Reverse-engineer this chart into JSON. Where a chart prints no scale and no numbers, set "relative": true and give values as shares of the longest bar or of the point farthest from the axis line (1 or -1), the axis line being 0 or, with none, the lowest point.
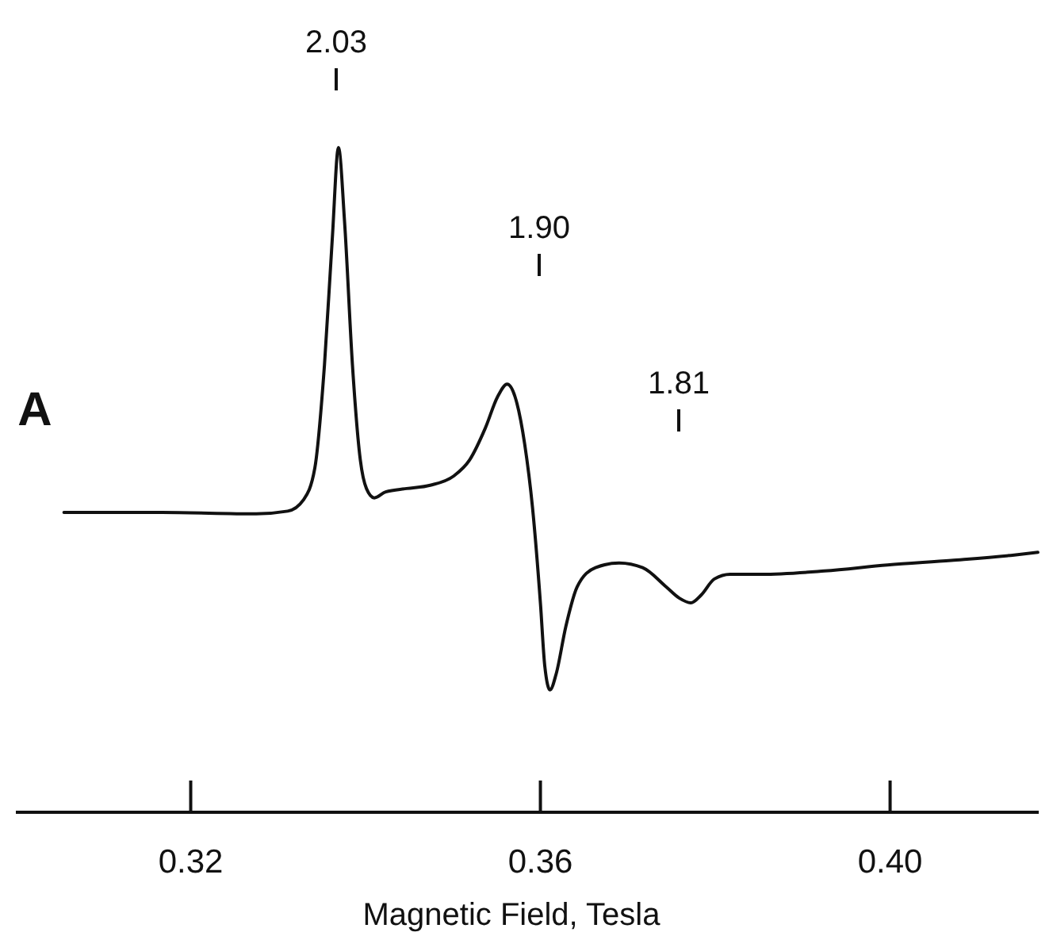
{
  "chart_data": {
    "type": "line",
    "relative": true,
    "xlabel": "Magnetic Field, Tesla",
    "xlim": [
      0.3,
      0.417
    ],
    "xticks": [
      0.32,
      0.36,
      {
        "value": 0.4,
        "label": "0.40"
      }
    ],
    "grid": false,
    "marker": "none",
    "line_style": "solid",
    "x": [
      0.3055,
      0.3167,
      0.3275,
      0.3311,
      0.3329,
      0.3342,
      0.3353,
      0.3362,
      0.3369,
      0.3376,
      0.3385,
      0.3394,
      0.3401,
      0.341,
      0.3423,
      0.3447,
      0.3474,
      0.3501,
      0.3519,
      0.3537,
      0.3551,
      0.3562,
      0.3571,
      0.3582,
      0.3591,
      0.36,
      0.3605,
      0.3611,
      0.3618,
      0.3629,
      0.3642,
      0.3663,
      0.369,
      0.3717,
      0.3744,
      0.3759,
      0.3772,
      0.3784,
      0.3799,
      0.3817,
      0.3853,
      0.3925,
      0.3997,
      0.407,
      0.4142,
      0.4169
    ],
    "series": [
      {
        "color": "#111111",
        "values": [
          0.451,
          0.451,
          0.449,
          0.453,
          0.47,
          0.518,
          0.673,
          0.864,
          1,
          0.888,
          0.673,
          0.53,
          0.487,
          0.473,
          0.482,
          0.487,
          0.492,
          0.506,
          0.53,
          0.578,
          0.625,
          0.644,
          0.625,
          0.554,
          0.458,
          0.315,
          0.22,
          0.184,
          0.208,
          0.279,
          0.339,
          0.368,
          0.375,
          0.368,
          0.339,
          0.322,
          0.315,
          0.327,
          0.351,
          0.358,
          0.358,
          0.363,
          0.372,
          0.379,
          0.387,
          0.391
        ]
      }
    ],
    "annotations": [
      "A",
      "2.03",
      "1.90",
      "1.81"
    ]
  }
}
